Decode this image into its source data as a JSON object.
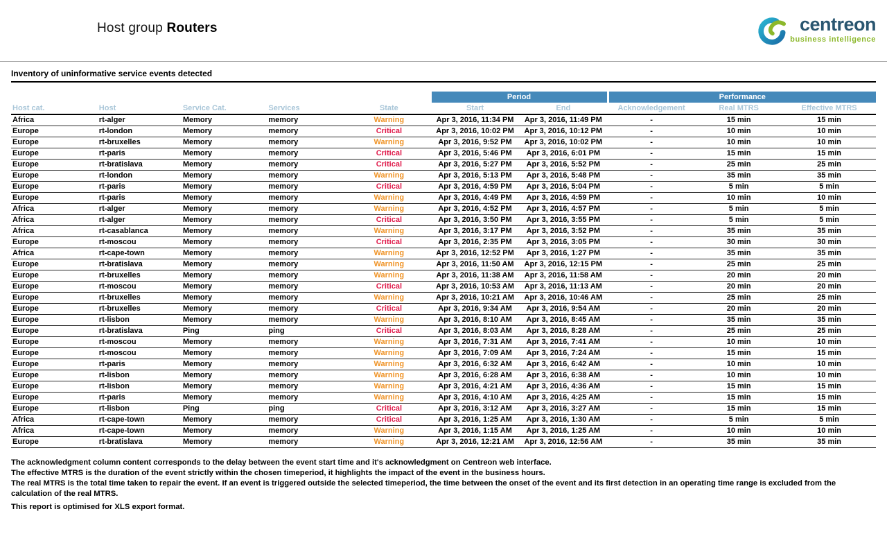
{
  "header": {
    "title_prefix": "Host group",
    "title_bold": "Routers",
    "logo": {
      "brand": "centreon",
      "tagline": "business intelligence"
    }
  },
  "section": {
    "title": "Inventory of uninformative service events detected"
  },
  "table": {
    "group_headers": {
      "period": "Period",
      "performance": "Performance"
    },
    "columns": [
      "Host cat.",
      "Host",
      "Service Cat.",
      "Services",
      "State",
      "Start",
      "End",
      "Acknowledgement",
      "Real MTRS",
      "Effective MTRS"
    ],
    "rows": [
      {
        "host_cat": "Africa",
        "host": "rt-alger",
        "service_cat": "Memory",
        "services": "memory",
        "state": "Warning",
        "start": "Apr 3, 2016, 11:34 PM",
        "end": "Apr 3, 2016, 11:49 PM",
        "ack": "-",
        "real_mtrs": "15 min",
        "effective_mtrs": "15 min"
      },
      {
        "host_cat": "Europe",
        "host": "rt-london",
        "service_cat": "Memory",
        "services": "memory",
        "state": "Critical",
        "start": "Apr 3, 2016, 10:02 PM",
        "end": "Apr 3, 2016, 10:12 PM",
        "ack": "-",
        "real_mtrs": "10 min",
        "effective_mtrs": "10 min"
      },
      {
        "host_cat": "Europe",
        "host": "rt-bruxelles",
        "service_cat": "Memory",
        "services": "memory",
        "state": "Warning",
        "start": "Apr 3, 2016, 9:52 PM",
        "end": "Apr 3, 2016, 10:02 PM",
        "ack": "-",
        "real_mtrs": "10 min",
        "effective_mtrs": "10 min"
      },
      {
        "host_cat": "Europe",
        "host": "rt-paris",
        "service_cat": "Memory",
        "services": "memory",
        "state": "Critical",
        "start": "Apr 3, 2016, 5:46 PM",
        "end": "Apr 3, 2016, 6:01 PM",
        "ack": "-",
        "real_mtrs": "15 min",
        "effective_mtrs": "15 min"
      },
      {
        "host_cat": "Europe",
        "host": "rt-bratislava",
        "service_cat": "Memory",
        "services": "memory",
        "state": "Critical",
        "start": "Apr 3, 2016, 5:27 PM",
        "end": "Apr 3, 2016, 5:52 PM",
        "ack": "-",
        "real_mtrs": "25 min",
        "effective_mtrs": "25 min"
      },
      {
        "host_cat": "Europe",
        "host": "rt-london",
        "service_cat": "Memory",
        "services": "memory",
        "state": "Warning",
        "start": "Apr 3, 2016, 5:13 PM",
        "end": "Apr 3, 2016, 5:48 PM",
        "ack": "-",
        "real_mtrs": "35 min",
        "effective_mtrs": "35 min"
      },
      {
        "host_cat": "Europe",
        "host": "rt-paris",
        "service_cat": "Memory",
        "services": "memory",
        "state": "Critical",
        "start": "Apr 3, 2016, 4:59 PM",
        "end": "Apr 3, 2016, 5:04 PM",
        "ack": "-",
        "real_mtrs": "5 min",
        "effective_mtrs": "5 min"
      },
      {
        "host_cat": "Europe",
        "host": "rt-paris",
        "service_cat": "Memory",
        "services": "memory",
        "state": "Warning",
        "start": "Apr 3, 2016, 4:49 PM",
        "end": "Apr 3, 2016, 4:59 PM",
        "ack": "-",
        "real_mtrs": "10 min",
        "effective_mtrs": "10 min"
      },
      {
        "host_cat": "Africa",
        "host": "rt-alger",
        "service_cat": "Memory",
        "services": "memory",
        "state": "Warning",
        "start": "Apr 3, 2016, 4:52 PM",
        "end": "Apr 3, 2016, 4:57 PM",
        "ack": "-",
        "real_mtrs": "5 min",
        "effective_mtrs": "5 min"
      },
      {
        "host_cat": "Africa",
        "host": "rt-alger",
        "service_cat": "Memory",
        "services": "memory",
        "state": "Critical",
        "start": "Apr 3, 2016, 3:50 PM",
        "end": "Apr 3, 2016, 3:55 PM",
        "ack": "-",
        "real_mtrs": "5 min",
        "effective_mtrs": "5 min"
      },
      {
        "host_cat": "Africa",
        "host": "rt-casablanca",
        "service_cat": "Memory",
        "services": "memory",
        "state": "Warning",
        "start": "Apr 3, 2016, 3:17 PM",
        "end": "Apr 3, 2016, 3:52 PM",
        "ack": "-",
        "real_mtrs": "35 min",
        "effective_mtrs": "35 min"
      },
      {
        "host_cat": "Europe",
        "host": "rt-moscou",
        "service_cat": "Memory",
        "services": "memory",
        "state": "Critical",
        "start": "Apr 3, 2016, 2:35 PM",
        "end": "Apr 3, 2016, 3:05 PM",
        "ack": "-",
        "real_mtrs": "30 min",
        "effective_mtrs": "30 min"
      },
      {
        "host_cat": "Africa",
        "host": "rt-cape-town",
        "service_cat": "Memory",
        "services": "memory",
        "state": "Warning",
        "start": "Apr 3, 2016, 12:52 PM",
        "end": "Apr 3, 2016, 1:27 PM",
        "ack": "-",
        "real_mtrs": "35 min",
        "effective_mtrs": "35 min"
      },
      {
        "host_cat": "Europe",
        "host": "rt-bratislava",
        "service_cat": "Memory",
        "services": "memory",
        "state": "Warning",
        "start": "Apr 3, 2016, 11:50 AM",
        "end": "Apr 3, 2016, 12:15 PM",
        "ack": "-",
        "real_mtrs": "25 min",
        "effective_mtrs": "25 min"
      },
      {
        "host_cat": "Europe",
        "host": "rt-bruxelles",
        "service_cat": "Memory",
        "services": "memory",
        "state": "Warning",
        "start": "Apr 3, 2016, 11:38 AM",
        "end": "Apr 3, 2016, 11:58 AM",
        "ack": "-",
        "real_mtrs": "20 min",
        "effective_mtrs": "20 min"
      },
      {
        "host_cat": "Europe",
        "host": "rt-moscou",
        "service_cat": "Memory",
        "services": "memory",
        "state": "Critical",
        "start": "Apr 3, 2016, 10:53 AM",
        "end": "Apr 3, 2016, 11:13 AM",
        "ack": "-",
        "real_mtrs": "20 min",
        "effective_mtrs": "20 min"
      },
      {
        "host_cat": "Europe",
        "host": "rt-bruxelles",
        "service_cat": "Memory",
        "services": "memory",
        "state": "Warning",
        "start": "Apr 3, 2016, 10:21 AM",
        "end": "Apr 3, 2016, 10:46 AM",
        "ack": "-",
        "real_mtrs": "25 min",
        "effective_mtrs": "25 min"
      },
      {
        "host_cat": "Europe",
        "host": "rt-bruxelles",
        "service_cat": "Memory",
        "services": "memory",
        "state": "Critical",
        "start": "Apr 3, 2016, 9:34 AM",
        "end": "Apr 3, 2016, 9:54 AM",
        "ack": "-",
        "real_mtrs": "20 min",
        "effective_mtrs": "20 min"
      },
      {
        "host_cat": "Europe",
        "host": "rt-lisbon",
        "service_cat": "Memory",
        "services": "memory",
        "state": "Warning",
        "start": "Apr 3, 2016, 8:10 AM",
        "end": "Apr 3, 2016, 8:45 AM",
        "ack": "-",
        "real_mtrs": "35 min",
        "effective_mtrs": "35 min"
      },
      {
        "host_cat": "Europe",
        "host": "rt-bratislava",
        "service_cat": "Ping",
        "services": "ping",
        "state": "Critical",
        "start": "Apr 3, 2016, 8:03 AM",
        "end": "Apr 3, 2016, 8:28 AM",
        "ack": "-",
        "real_mtrs": "25 min",
        "effective_mtrs": "25 min"
      },
      {
        "host_cat": "Europe",
        "host": "rt-moscou",
        "service_cat": "Memory",
        "services": "memory",
        "state": "Warning",
        "start": "Apr 3, 2016, 7:31 AM",
        "end": "Apr 3, 2016, 7:41 AM",
        "ack": "-",
        "real_mtrs": "10 min",
        "effective_mtrs": "10 min"
      },
      {
        "host_cat": "Europe",
        "host": "rt-moscou",
        "service_cat": "Memory",
        "services": "memory",
        "state": "Warning",
        "start": "Apr 3, 2016, 7:09 AM",
        "end": "Apr 3, 2016, 7:24 AM",
        "ack": "-",
        "real_mtrs": "15 min",
        "effective_mtrs": "15 min"
      },
      {
        "host_cat": "Europe",
        "host": "rt-paris",
        "service_cat": "Memory",
        "services": "memory",
        "state": "Warning",
        "start": "Apr 3, 2016, 6:32 AM",
        "end": "Apr 3, 2016, 6:42 AM",
        "ack": "-",
        "real_mtrs": "10 min",
        "effective_mtrs": "10 min"
      },
      {
        "host_cat": "Europe",
        "host": "rt-lisbon",
        "service_cat": "Memory",
        "services": "memory",
        "state": "Warning",
        "start": "Apr 3, 2016, 6:28 AM",
        "end": "Apr 3, 2016, 6:38 AM",
        "ack": "-",
        "real_mtrs": "10 min",
        "effective_mtrs": "10 min"
      },
      {
        "host_cat": "Europe",
        "host": "rt-lisbon",
        "service_cat": "Memory",
        "services": "memory",
        "state": "Warning",
        "start": "Apr 3, 2016, 4:21 AM",
        "end": "Apr 3, 2016, 4:36 AM",
        "ack": "-",
        "real_mtrs": "15 min",
        "effective_mtrs": "15 min"
      },
      {
        "host_cat": "Europe",
        "host": "rt-paris",
        "service_cat": "Memory",
        "services": "memory",
        "state": "Warning",
        "start": "Apr 3, 2016, 4:10 AM",
        "end": "Apr 3, 2016, 4:25 AM",
        "ack": "-",
        "real_mtrs": "15 min",
        "effective_mtrs": "15 min"
      },
      {
        "host_cat": "Europe",
        "host": "rt-lisbon",
        "service_cat": "Ping",
        "services": "ping",
        "state": "Critical",
        "start": "Apr 3, 2016, 3:12 AM",
        "end": "Apr 3, 2016, 3:27 AM",
        "ack": "-",
        "real_mtrs": "15 min",
        "effective_mtrs": "15 min"
      },
      {
        "host_cat": "Africa",
        "host": "rt-cape-town",
        "service_cat": "Memory",
        "services": "memory",
        "state": "Critical",
        "start": "Apr 3, 2016, 1:25 AM",
        "end": "Apr 3, 2016, 1:30 AM",
        "ack": "-",
        "real_mtrs": "5 min",
        "effective_mtrs": "5 min"
      },
      {
        "host_cat": "Africa",
        "host": "rt-cape-town",
        "service_cat": "Memory",
        "services": "memory",
        "state": "Warning",
        "start": "Apr 3, 2016, 1:15 AM",
        "end": "Apr 3, 2016, 1:25 AM",
        "ack": "-",
        "real_mtrs": "10 min",
        "effective_mtrs": "10 min"
      },
      {
        "host_cat": "Europe",
        "host": "rt-bratislava",
        "service_cat": "Memory",
        "services": "memory",
        "state": "Warning",
        "start": "Apr 3, 2016, 12:21 AM",
        "end": "Apr 3, 2016, 12:56 AM",
        "ack": "-",
        "real_mtrs": "35 min",
        "effective_mtrs": "35 min"
      }
    ]
  },
  "footer": {
    "notes": [
      "The acknowledgment column content corresponds to the delay between the event start time and it's acknowledgment on Centreon web interface.",
      "The effective MTRS is the duration of the event strictly within the chosen timeperiod, it highlights the impact of the event in the business hours.",
      "The real MTRS is the total time taken to repair the event. If an event is triggered outside the selected timeperiod, the time between the onset of the event and its first detection in an operating time range is excluded from the calculation of the real MTRS.",
      "This report is optimised for XLS export format."
    ]
  },
  "colors": {
    "banner_blue": "#4589ba",
    "column_header_text": "#a9c6d8",
    "warning": "#ef9326",
    "critical": "#e01b4b",
    "brand_navy": "#2a5670",
    "brand_green": "#8cb82b"
  }
}
